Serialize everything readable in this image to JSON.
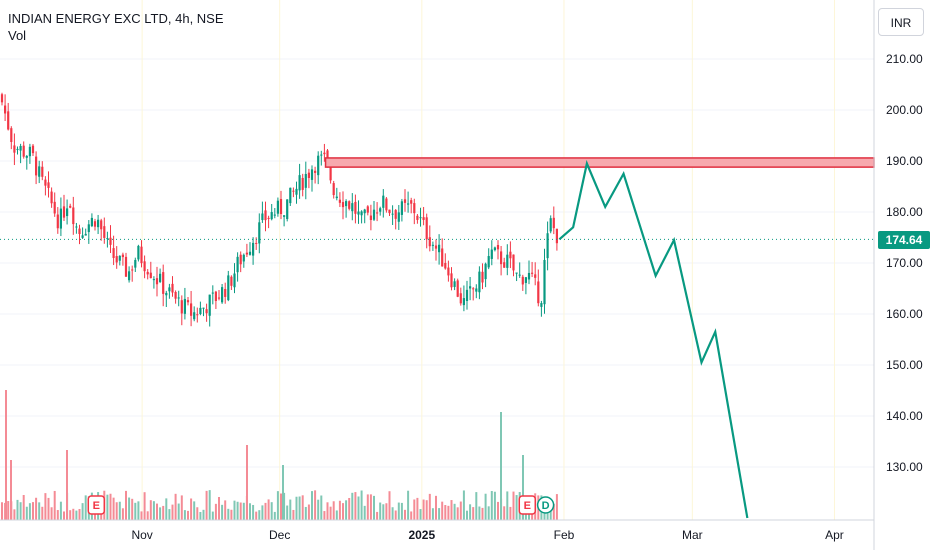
{
  "legend": {
    "symbol_line": "INDIAN ENERGY EXC LTD, 4h, NSE",
    "volume_label": "Vol"
  },
  "currency": "INR",
  "last_price_label": "174.64",
  "colors": {
    "up": "#089981",
    "down": "#f23645",
    "projection": "#089981",
    "zone_fill": "#f7a9ae",
    "zone_stroke": "#e03040",
    "grid": "#f0f3fa",
    "month_grid": "#fdf6d8"
  },
  "chart_data": {
    "type": "candlestick",
    "title": "INDIAN ENERGY EXC LTD, 4h, NSE",
    "y_axis": {
      "ticks": [
        "210.00",
        "200.00",
        "190.00",
        "180.00",
        "170.00",
        "160.00",
        "150.00",
        "140.00",
        "130.00"
      ],
      "range": [
        120,
        222
      ],
      "side": "right"
    },
    "x_axis": {
      "ticks": [
        "Nov",
        "Dec",
        "2025",
        "Feb",
        "Mar",
        "Apr"
      ],
      "bold_ticks": [
        "2025"
      ]
    },
    "last_price": 174.64,
    "resistance_zone": {
      "low": 188.8,
      "high": 190.6,
      "from": "2024-12-11"
    },
    "events": [
      {
        "label": "E",
        "date": "2024-10-22"
      },
      {
        "label": "E",
        "date": "2025-01-24"
      },
      {
        "label": "D",
        "date": "2025-01-28"
      }
    ],
    "candles_close_path": [
      [
        "2024-10-01",
        203
      ],
      [
        "2024-10-04",
        193
      ],
      [
        "2024-10-08",
        191
      ],
      [
        "2024-10-10",
        186
      ],
      [
        "2024-10-14",
        178
      ],
      [
        "2024-10-16",
        183
      ],
      [
        "2024-10-18",
        176
      ],
      [
        "2024-10-22",
        179
      ],
      [
        "2024-10-25",
        172
      ],
      [
        "2024-10-29",
        168
      ],
      [
        "2024-10-31",
        172
      ],
      [
        "2024-11-05",
        166
      ],
      [
        "2024-11-08",
        163
      ],
      [
        "2024-11-12",
        160
      ],
      [
        "2024-11-14",
        161
      ],
      [
        "2024-11-18",
        164
      ],
      [
        "2024-11-20",
        166
      ],
      [
        "2024-11-22",
        170
      ],
      [
        "2024-11-26",
        176
      ],
      [
        "2024-11-28",
        179
      ],
      [
        "2024-12-02",
        181
      ],
      [
        "2024-12-05",
        185
      ],
      [
        "2024-12-09",
        190
      ],
      [
        "2024-12-11",
        190
      ],
      [
        "2024-12-13",
        184
      ],
      [
        "2024-12-17",
        181
      ],
      [
        "2024-12-19",
        178
      ],
      [
        "2024-12-23",
        182
      ],
      [
        "2024-12-26",
        180
      ],
      [
        "2024-12-30",
        181
      ],
      [
        "2025-01-02",
        176
      ],
      [
        "2025-01-06",
        170
      ],
      [
        "2025-01-08",
        166
      ],
      [
        "2025-01-10",
        162
      ],
      [
        "2025-01-14",
        167
      ],
      [
        "2025-01-16",
        172
      ],
      [
        "2025-01-20",
        170
      ],
      [
        "2025-01-22",
        167
      ],
      [
        "2025-01-24",
        168
      ],
      [
        "2025-01-27",
        163
      ],
      [
        "2025-01-28",
        172
      ],
      [
        "2025-01-29",
        178
      ],
      [
        "2025-01-31",
        174.64
      ]
    ],
    "projection_path": [
      [
        "2025-01-31",
        174.64
      ],
      [
        "2025-02-03",
        177
      ],
      [
        "2025-02-06",
        189.5
      ],
      [
        "2025-02-10",
        181
      ],
      [
        "2025-02-14",
        187.5
      ],
      [
        "2025-02-21",
        167.5
      ],
      [
        "2025-02-25",
        174.5
      ],
      [
        "2025-03-03",
        150.5
      ],
      [
        "2025-03-06",
        156.5
      ],
      [
        "2025-03-13",
        120
      ]
    ],
    "volume": {
      "notable_spikes": [
        "2024-10-01",
        "2024-10-14",
        "2024-11-29",
        "2024-12-12",
        "2025-01-24",
        "2025-01-28"
      ]
    }
  }
}
